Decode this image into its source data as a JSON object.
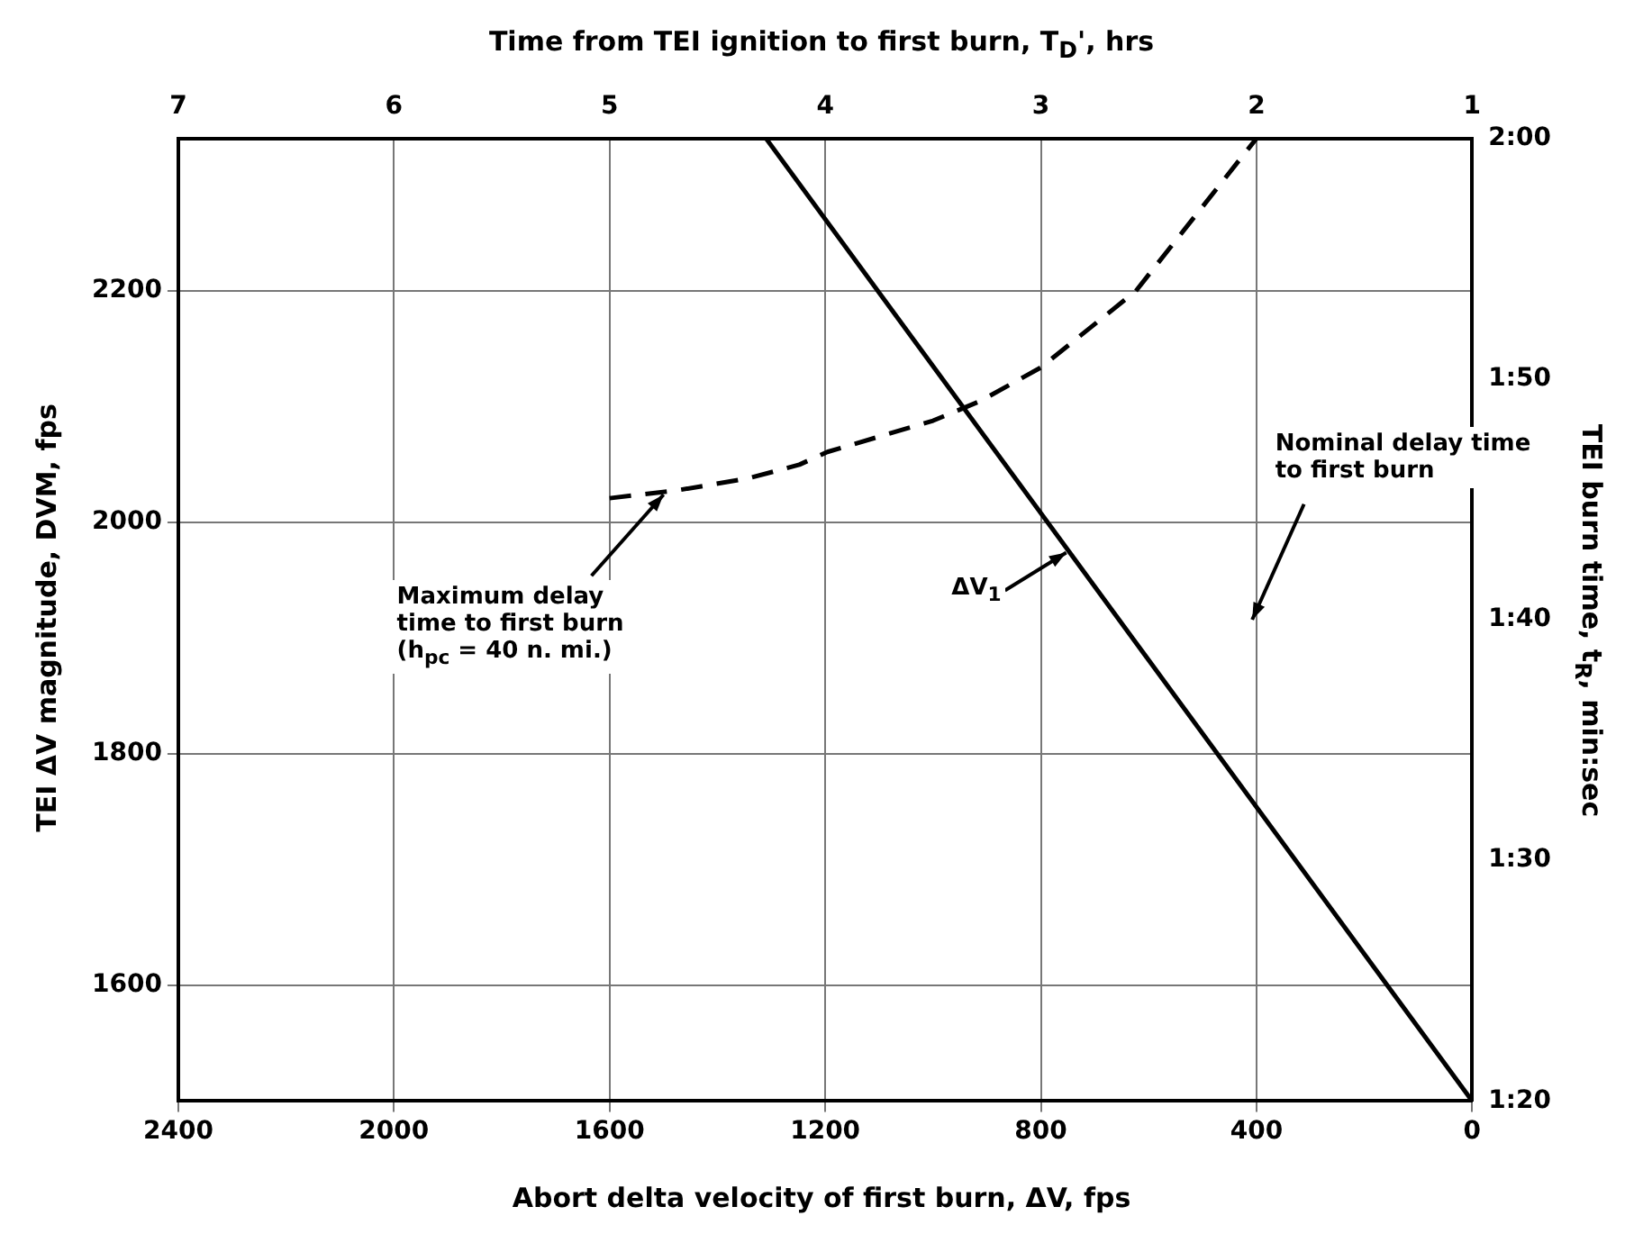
{
  "chart_data": {
    "type": "line",
    "xlabel": "Abort delta velocity of first burn, ΔV, fps",
    "ylabel": "TEI ΔV magnitude, DVM, fps",
    "y2label": "TEI burn time, t$_{R}$, min:sec",
    "x2label": "Time from TEI ignition to first burn, T$_{D}$', hrs",
    "xlim": [
      2400,
      0
    ],
    "xticks": [
      2400,
      2000,
      1600,
      1200,
      800,
      400,
      0
    ],
    "x2lim": [
      7,
      1
    ],
    "x2ticks": [
      7,
      6,
      5,
      4,
      3,
      2,
      1
    ],
    "ylim": [
      1500,
      2332
    ],
    "yticks": [
      1600,
      1800,
      2000,
      2200
    ],
    "y2lim": [
      80,
      120
    ],
    "y2ticks": [
      {
        "value": 80,
        "label": "1:20"
      },
      {
        "value": 90,
        "label": "1:30"
      },
      {
        "value": 100,
        "label": "1:40"
      },
      {
        "value": 110,
        "label": "1:50"
      },
      {
        "value": 120,
        "label": "2:00"
      }
    ],
    "grid": true,
    "legend": false,
    "marker": "none",
    "series": [
      {
        "color": "#000000",
        "line_style": "solid",
        "x": [
          0,
          1310
        ],
        "values": [
          1500,
          2332
        ]
      },
      {
        "color": "#000000",
        "line_style": "dashed",
        "axis": "x2",
        "x": [
          5.0,
          4.68,
          4.36,
          4.12,
          3.99,
          3.5,
          3.28,
          3.0,
          2.56,
          2.0
        ],
        "values": [
          2021,
          2028,
          2038,
          2050,
          2061,
          2088,
          2105,
          2134,
          2200,
          2332
        ]
      }
    ],
    "annotations": [
      {
        "text": "Maximum delay time to first burn (h$_{pc}$ = 40 n. mi.)",
        "x": 1500,
        "y": 2024
      },
      {
        "text": "ΔV$_{1}$",
        "x": 753,
        "y": 1974
      },
      "Nominal delay time to first burn"
    ]
  }
}
